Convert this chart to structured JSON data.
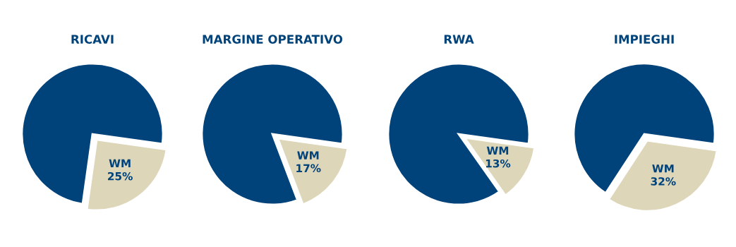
{
  "chart_data": [
    {
      "type": "pie",
      "title": "RICAVI",
      "categories": [
        null,
        "WM"
      ],
      "values": [
        75,
        25
      ],
      "colors": [
        "#00427a",
        "#ddd6b9"
      ],
      "value_labels": [
        null,
        "25%"
      ]
    },
    {
      "type": "pie",
      "title": "MARGINE OPERATIVO",
      "categories": [
        null,
        "WM"
      ],
      "values": [
        83,
        17
      ],
      "colors": [
        "#00427a",
        "#ddd6b9"
      ],
      "value_labels": [
        null,
        "17%"
      ]
    },
    {
      "type": "pie",
      "title": "RWA",
      "categories": [
        null,
        "WM"
      ],
      "values": [
        87,
        13
      ],
      "colors": [
        "#00427a",
        "#ddd6b9"
      ],
      "value_labels": [
        null,
        "13%"
      ]
    },
    {
      "type": "pie",
      "title": "IMPIEGHI",
      "categories": [
        null,
        "WM"
      ],
      "values": [
        68,
        32
      ],
      "colors": [
        "#00427a",
        "#ddd6b9"
      ],
      "value_labels": [
        null,
        "32%"
      ]
    }
  ]
}
